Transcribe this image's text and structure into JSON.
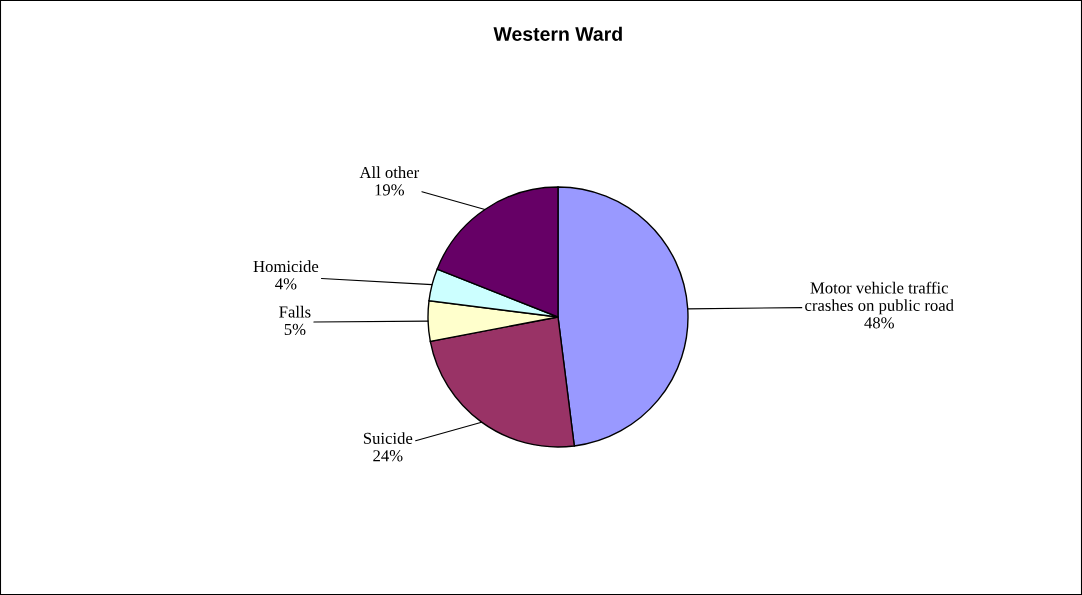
{
  "chart_data": {
    "type": "pie",
    "title": "Western Ward",
    "categories": [
      "Motor vehicle traffic\ncrashes on public road",
      "Suicide",
      "Falls",
      "Homicide",
      "All other"
    ],
    "values": [
      48,
      24,
      5,
      4,
      19
    ],
    "value_labels": [
      "48%",
      "24%",
      "5%",
      "4%",
      "19%"
    ],
    "colors": [
      "#9999ff",
      "#993366",
      "#ffffcc",
      "#ccffff",
      "#660066"
    ],
    "legend": false
  }
}
